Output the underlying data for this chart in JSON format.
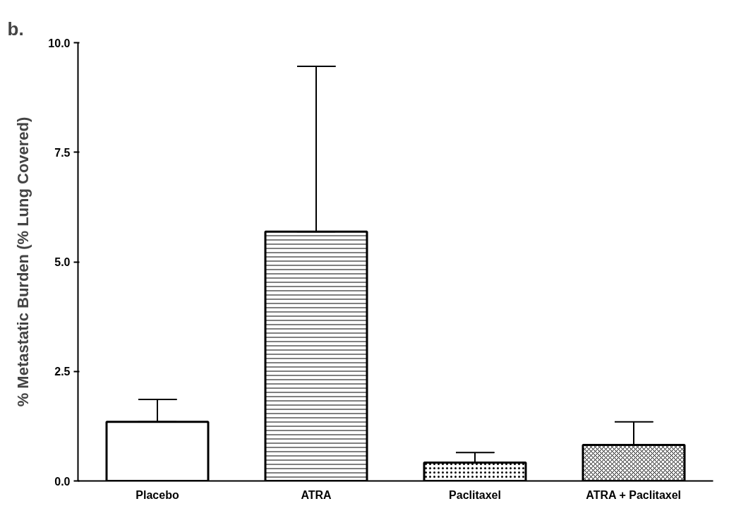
{
  "chart_data": {
    "type": "bar",
    "annotations": [
      "b."
    ],
    "ylabel": "% Metastatic Burden (% Lung Covered)",
    "categories": [
      "Placebo",
      "ATRA",
      "Paclitaxel",
      "ATRA + Paclitaxel"
    ],
    "values": [
      1.35,
      5.69,
      0.42,
      0.82
    ],
    "errors": [
      [
        1.35,
        1.86
      ],
      [
        5.69,
        9.46
      ],
      [
        0.42,
        0.65
      ],
      [
        0.82,
        1.35
      ]
    ],
    "colors": [
      "#ffffff",
      "#ffffff",
      "#ffffff",
      "#ffffff"
    ],
    "ylim": [
      0,
      10
    ],
    "yticks": [
      {
        "value": 0,
        "label": "0.0"
      },
      {
        "value": 2.5,
        "label": "2.5"
      },
      {
        "value": 5,
        "label": "5.0"
      },
      {
        "value": 7.5,
        "label": "7.5"
      },
      {
        "value": 10,
        "label": "10.0"
      }
    ],
    "grid": false
  }
}
